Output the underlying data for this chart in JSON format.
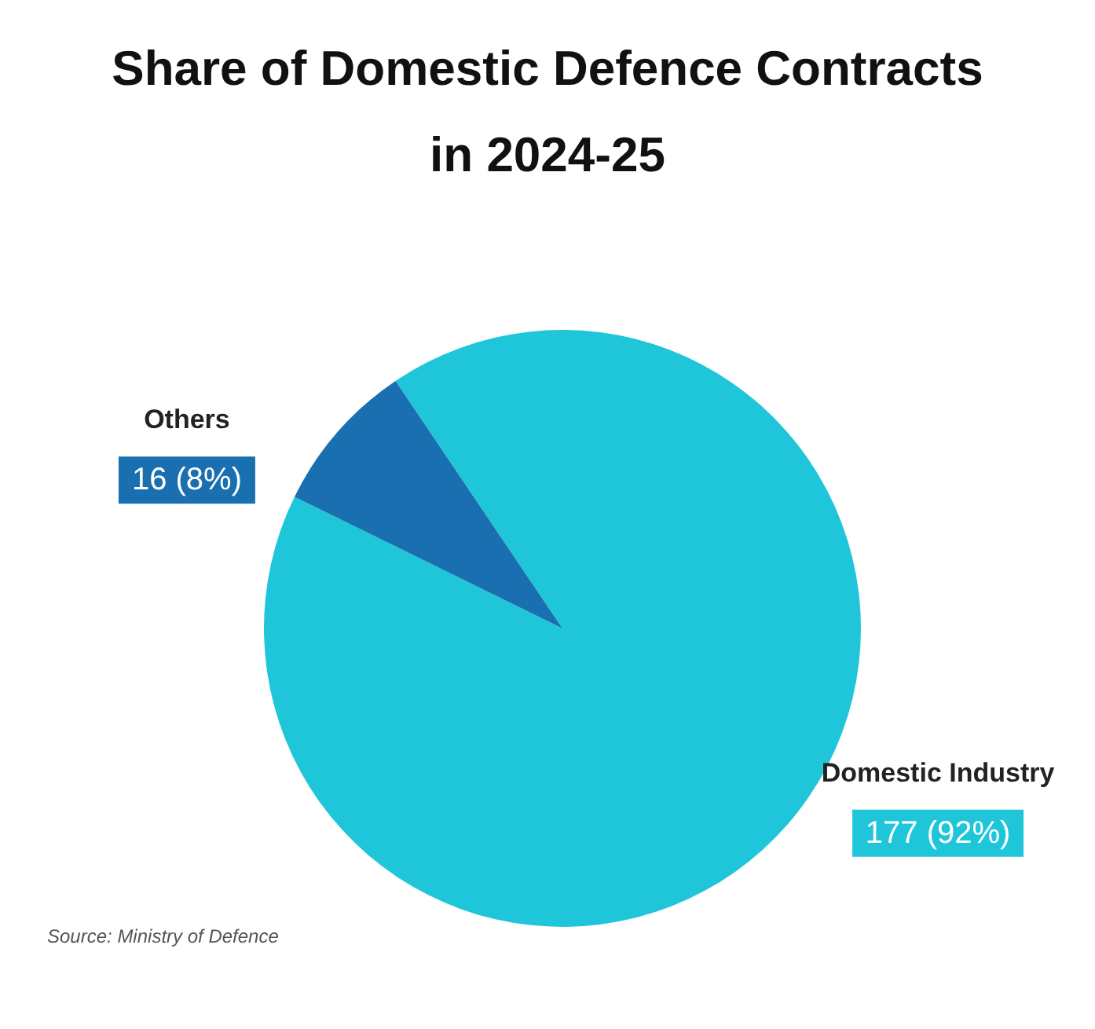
{
  "chart_data": {
    "type": "pie",
    "title": "Share of Domestic Defence Contracts in 2024-25",
    "categories": [
      "Domestic Industry",
      "Others"
    ],
    "values": [
      177,
      16
    ],
    "colors": [
      "#1fc6d9",
      "#1a6fb0"
    ],
    "value_labels": [
      "177 (92%)",
      "16 (8%)"
    ],
    "annotations": [
      "Source: Ministry of Defence"
    ]
  }
}
